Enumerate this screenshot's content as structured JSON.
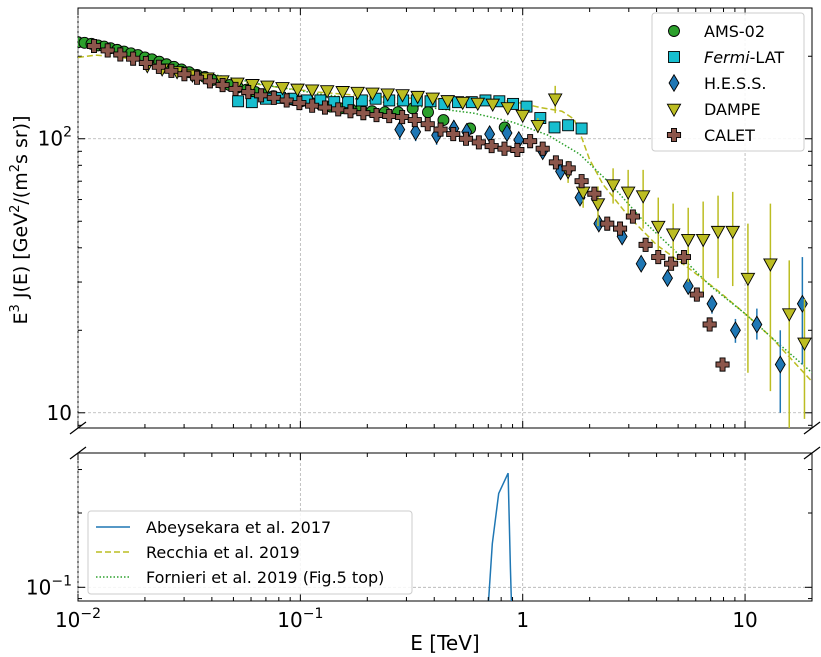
{
  "chart_data": {
    "type": "scatter",
    "xlabel": "E [TeV]",
    "ylabel": "E^3 J(E) [GeV^2/(m^2 s sr)]",
    "x_scale": "log",
    "y_scale": "log",
    "xlim": [
      0.01,
      20
    ],
    "grid": true,
    "upper_panel": {
      "ylim": [
        8.8,
        300
      ],
      "y_ticks": [
        {
          "value": 10,
          "label": "10"
        },
        {
          "value": 100,
          "label": "10^2"
        }
      ]
    },
    "lower_panel": {
      "ylim": [
        0.088,
        0.35
      ],
      "y_ticks": [
        {
          "value": 0.1,
          "label": "10^-1"
        }
      ]
    },
    "x_ticks": [
      {
        "value": 0.01,
        "base": "10",
        "exp": "−2"
      },
      {
        "value": 0.1,
        "base": "10",
        "exp": "−1"
      },
      {
        "value": 1,
        "base": "1",
        "exp": ""
      },
      {
        "value": 10,
        "base": "10",
        "exp": ""
      }
    ],
    "legend_top": {
      "placement": "top-right",
      "entries": [
        {
          "label": "AMS-02",
          "series": "ams"
        },
        {
          "label_italic": "Fermi",
          "label_rest": "-LAT",
          "series": "fermi"
        },
        {
          "label": "H.E.S.S.",
          "series": "hess"
        },
        {
          "label": "DAMPE",
          "series": "dampe"
        },
        {
          "label": "CALET",
          "series": "calet"
        }
      ]
    },
    "legend_bottom": {
      "placement": "lower-left",
      "entries": [
        {
          "label": "Abeysekara et al. 2017",
          "series": "abey"
        },
        {
          "label": "Recchia et al. 2019",
          "series": "recchia"
        },
        {
          "label": "Fornieri et al. 2019 (Fig.5 top)",
          "series": "fornieri"
        }
      ]
    },
    "colors": {
      "ams": "#2ca02c",
      "fermi": "#17becf",
      "hess": "#1f77b4",
      "hess_err": "#1f77b4",
      "dampe": "#bcbd22",
      "calet": "#8c564b",
      "abey": "#1f77b4",
      "recchia": "#bcbd22",
      "fornieri": "#2ca02c"
    },
    "series": [
      {
        "key": "ams",
        "marker": "circle",
        "points": [
          [
            0.01,
            225
          ],
          [
            0.0107,
            224
          ],
          [
            0.0115,
            222
          ],
          [
            0.0123,
            219
          ],
          [
            0.0131,
            217
          ],
          [
            0.014,
            214
          ],
          [
            0.015,
            211
          ],
          [
            0.0161,
            208
          ],
          [
            0.0173,
            205
          ],
          [
            0.0186,
            202
          ],
          [
            0.02,
            198
          ],
          [
            0.0215,
            195
          ],
          [
            0.0232,
            191
          ],
          [
            0.025,
            187
          ],
          [
            0.027,
            183
          ],
          [
            0.0292,
            179
          ],
          [
            0.0316,
            175
          ],
          [
            0.0343,
            171
          ],
          [
            0.0372,
            168
          ],
          [
            0.0404,
            164
          ],
          [
            0.044,
            160
          ],
          [
            0.048,
            157
          ],
          [
            0.0524,
            154
          ],
          [
            0.0573,
            151
          ],
          [
            0.0628,
            148
          ],
          [
            0.0689,
            145
          ],
          [
            0.0757,
            143
          ],
          [
            0.0833,
            141
          ],
          [
            0.0918,
            139
          ],
          [
            0.101,
            137
          ],
          [
            0.112,
            135
          ],
          [
            0.124,
            133
          ],
          [
            0.137,
            131
          ],
          [
            0.152,
            129
          ],
          [
            0.169,
            128
          ],
          [
            0.188,
            128
          ],
          [
            0.21,
            126
          ],
          [
            0.24,
            125
          ],
          [
            0.275,
            125
          ],
          [
            0.32,
            129
          ],
          [
            0.375,
            125
          ],
          [
            0.44,
            117
          ],
          [
            0.58,
            109
          ],
          [
            0.83,
            110
          ]
        ]
      },
      {
        "key": "fermi",
        "marker": "square",
        "points": [
          [
            0.0525,
            137
          ],
          [
            0.0605,
            136
          ],
          [
            0.07,
            140
          ],
          [
            0.081,
            141
          ],
          [
            0.093,
            140
          ],
          [
            0.107,
            138
          ],
          [
            0.123,
            138
          ],
          [
            0.142,
            136
          ],
          [
            0.164,
            136
          ],
          [
            0.189,
            138
          ],
          [
            0.218,
            140
          ],
          [
            0.251,
            138
          ],
          [
            0.29,
            138
          ],
          [
            0.334,
            138
          ],
          [
            0.385,
            137
          ],
          [
            0.444,
            134
          ],
          [
            0.512,
            136
          ],
          [
            0.59,
            136
          ],
          [
            0.68,
            138
          ],
          [
            0.785,
            137
          ],
          [
            0.905,
            134
          ],
          [
            1.04,
            131
          ],
          [
            1.2,
            119
          ],
          [
            1.39,
            110
          ],
          [
            1.6,
            112
          ],
          [
            1.84,
            109
          ]
        ]
      },
      {
        "key": "hess",
        "marker": "diamond",
        "points": [
          [
            0.28,
            108,
            99,
            117
          ],
          [
            0.33,
            106,
            98,
            114
          ],
          [
            0.41,
            103,
            95,
            110
          ],
          [
            0.49,
            109,
            101,
            117
          ],
          [
            0.56,
            106,
            99,
            113
          ],
          [
            0.71,
            104,
            97,
            111
          ],
          [
            0.85,
            105,
            98,
            112
          ],
          [
            0.96,
            99,
            93,
            105
          ],
          [
            1.23,
            90,
            85,
            96
          ],
          [
            1.48,
            76,
            72,
            81
          ],
          [
            1.81,
            61,
            58,
            64
          ],
          [
            2.2,
            49,
            47,
            51
          ],
          [
            2.8,
            44,
            42,
            46
          ],
          [
            3.41,
            35,
            33,
            37
          ],
          [
            4.48,
            31,
            30,
            32
          ],
          [
            5.55,
            29,
            28,
            30
          ],
          [
            7.1,
            25,
            23,
            26.5
          ],
          [
            9.05,
            20,
            18,
            22
          ],
          [
            11.3,
            21,
            18.5,
            24
          ],
          [
            14.4,
            15,
            10,
            20
          ],
          [
            18.1,
            25,
            15,
            37
          ]
        ]
      },
      {
        "key": "dampe",
        "marker": "triangle-down",
        "points": [
          [
            0.0205,
            185,
            184,
            186
          ],
          [
            0.0239,
            180,
            179,
            181
          ],
          [
            0.0279,
            176,
            175,
            177
          ],
          [
            0.0327,
            171,
            170,
            172
          ],
          [
            0.0382,
            167,
            166,
            168
          ],
          [
            0.0446,
            163,
            162,
            164
          ],
          [
            0.0521,
            160,
            159,
            161
          ],
          [
            0.0609,
            158,
            157,
            159
          ],
          [
            0.0711,
            156,
            155,
            157
          ],
          [
            0.0831,
            154,
            153,
            155
          ],
          [
            0.0971,
            152,
            151,
            153
          ],
          [
            0.113,
            151,
            150,
            152
          ],
          [
            0.132,
            150,
            149,
            151
          ],
          [
            0.155,
            149,
            148,
            150
          ],
          [
            0.181,
            148,
            147,
            149
          ],
          [
            0.211,
            147,
            146,
            148
          ],
          [
            0.247,
            146,
            145,
            147
          ],
          [
            0.288,
            145,
            144,
            146
          ],
          [
            0.337,
            143,
            141,
            145
          ],
          [
            0.394,
            141,
            139,
            143
          ],
          [
            0.46,
            138,
            135,
            141
          ],
          [
            0.537,
            136,
            132,
            140
          ],
          [
            0.628,
            135,
            131,
            139
          ],
          [
            0.733,
            134,
            129,
            139
          ],
          [
            0.857,
            130,
            124,
            136
          ],
          [
            1.0,
            122,
            115,
            129
          ],
          [
            1.17,
            112,
            105,
            119
          ],
          [
            1.4,
            140,
            124,
            156
          ],
          [
            1.6,
            76,
            69,
            83
          ],
          [
            1.87,
            64,
            56,
            72
          ],
          [
            2.18,
            58,
            48,
            67
          ],
          [
            2.55,
            68,
            58,
            78
          ],
          [
            2.98,
            64,
            52,
            77
          ],
          [
            3.48,
            62,
            47,
            77
          ],
          [
            4.07,
            48,
            36,
            61
          ],
          [
            4.75,
            45,
            33,
            58
          ],
          [
            5.55,
            43,
            30,
            56
          ],
          [
            6.48,
            43,
            27,
            59
          ],
          [
            7.56,
            46,
            31,
            62
          ],
          [
            8.8,
            46,
            29,
            64
          ],
          [
            10.3,
            31,
            14,
            49
          ],
          [
            13.0,
            35,
            12,
            58
          ],
          [
            15.8,
            23,
            8.7,
            36
          ],
          [
            18.5,
            18,
            9.5,
            26
          ]
        ]
      },
      {
        "key": "calet",
        "marker": "plus",
        "points": [
          [
            0.0118,
            218
          ],
          [
            0.0136,
            210
          ],
          [
            0.0155,
            203
          ],
          [
            0.0177,
            196
          ],
          [
            0.0202,
            189
          ],
          [
            0.0231,
            183
          ],
          [
            0.0263,
            177
          ],
          [
            0.0301,
            172
          ],
          [
            0.0343,
            167
          ],
          [
            0.0392,
            162
          ],
          [
            0.0447,
            157
          ],
          [
            0.0511,
            152
          ],
          [
            0.0583,
            148
          ],
          [
            0.0666,
            144
          ],
          [
            0.076,
            141
          ],
          [
            0.0868,
            138
          ],
          [
            0.099,
            135
          ],
          [
            0.113,
            132
          ],
          [
            0.129,
            130
          ],
          [
            0.148,
            128
          ],
          [
            0.168,
            126
          ],
          [
            0.192,
            124
          ],
          [
            0.22,
            122
          ],
          [
            0.251,
            121
          ],
          [
            0.287,
            120
          ],
          [
            0.327,
            117
          ],
          [
            0.374,
            113
          ],
          [
            0.427,
            108
          ],
          [
            0.487,
            104
          ],
          [
            0.556,
            100
          ],
          [
            0.635,
            97
          ],
          [
            0.725,
            94
          ],
          [
            0.828,
            92
          ],
          [
            0.946,
            91
          ],
          [
            1.08,
            98
          ],
          [
            1.23,
            92
          ],
          [
            1.41,
            82
          ],
          [
            1.61,
            78
          ],
          [
            1.84,
            70
          ],
          [
            2.1,
            63
          ],
          [
            2.4,
            49
          ],
          [
            2.74,
            47
          ],
          [
            3.13,
            52
          ],
          [
            3.57,
            41
          ],
          [
            4.07,
            37
          ],
          [
            4.65,
            35
          ],
          [
            5.31,
            37
          ],
          [
            6.07,
            27
          ],
          [
            6.93,
            21
          ],
          [
            7.92,
            15
          ]
        ]
      }
    ],
    "curves": [
      {
        "key": "recchia",
        "style": "dashed",
        "points": [
          [
            0.01,
            198
          ],
          [
            0.012,
            202
          ],
          [
            0.015,
            199
          ],
          [
            0.02,
            192
          ],
          [
            0.03,
            178
          ],
          [
            0.05,
            163
          ],
          [
            0.08,
            154
          ],
          [
            0.12,
            148
          ],
          [
            0.2,
            143
          ],
          [
            0.35,
            140
          ],
          [
            0.6,
            139
          ],
          [
            0.9,
            137
          ],
          [
            1.2,
            130
          ],
          [
            1.5,
            126
          ],
          [
            1.7,
            118
          ],
          [
            1.85,
            100
          ],
          [
            2.0,
            84
          ],
          [
            2.3,
            68
          ],
          [
            3.0,
            52
          ],
          [
            4.0,
            41
          ],
          [
            5.5,
            34
          ],
          [
            7.5,
            28
          ],
          [
            10.0,
            23
          ],
          [
            13.0,
            19
          ],
          [
            17.0,
            15
          ],
          [
            20.0,
            13
          ]
        ]
      },
      {
        "key": "fornieri",
        "style": "dotted",
        "points": [
          [
            0.01,
            230
          ],
          [
            0.015,
            210
          ],
          [
            0.025,
            190
          ],
          [
            0.04,
            172
          ],
          [
            0.07,
            157
          ],
          [
            0.12,
            146
          ],
          [
            0.2,
            138
          ],
          [
            0.35,
            131
          ],
          [
            0.6,
            124
          ],
          [
            0.9,
            115
          ],
          [
            1.3,
            103
          ],
          [
            1.8,
            88
          ],
          [
            2.5,
            68
          ],
          [
            3.5,
            50
          ],
          [
            5.0,
            38
          ],
          [
            7.0,
            29
          ],
          [
            10.0,
            23
          ],
          [
            14.0,
            18
          ],
          [
            20.0,
            14
          ]
        ]
      },
      {
        "key": "abey",
        "style": "solid",
        "panel": "lower",
        "points": [
          [
            0.7,
            0.085
          ],
          [
            0.73,
            0.15
          ],
          [
            0.78,
            0.24
          ],
          [
            0.86,
            0.29
          ],
          [
            0.88,
            0.12
          ],
          [
            0.89,
            0.085
          ]
        ]
      }
    ]
  }
}
